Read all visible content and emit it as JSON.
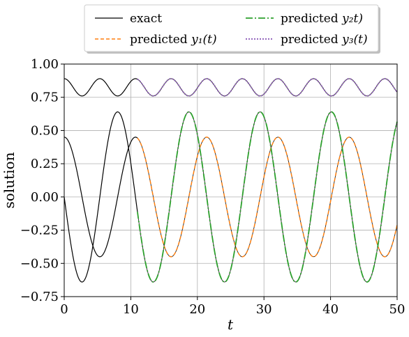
{
  "chart_data": {
    "type": "line",
    "xlabel": "t",
    "ylabel": "solution",
    "xlim": [
      0,
      50
    ],
    "ylim": [
      -0.75,
      1.0
    ],
    "grid": true,
    "legend_placement": "top-center, above plot",
    "x_ticks": [
      0,
      10,
      20,
      30,
      40,
      50
    ],
    "x_tick_labels": [
      "0",
      "10",
      "20",
      "30",
      "40",
      "50"
    ],
    "y_ticks": [
      -0.75,
      -0.5,
      -0.25,
      0.0,
      0.25,
      0.5,
      0.75,
      1.0
    ],
    "y_tick_labels": [
      "−0.75",
      "−0.50",
      "−0.25",
      "0.00",
      "0.25",
      "0.50",
      "0.75",
      "1.00"
    ],
    "legend": [
      {
        "key": "exact",
        "pre": "exact",
        "math": "",
        "color": "#000000",
        "dash": "",
        "width": 1.2
      },
      {
        "key": "y2",
        "pre": "predicted ",
        "math": "y₂t)",
        "color": "#2ca02c",
        "dash": "10,3,2,3",
        "width": 1.8
      },
      {
        "key": "y1",
        "pre": "predicted ",
        "math": "y₁(t)",
        "color": "#ff7f0e",
        "dash": "5,3",
        "width": 1.5
      },
      {
        "key": "y3",
        "pre": "predicted ",
        "math": "y₃(t)",
        "color": "#9467bd",
        "dash": "2,2",
        "width": 2.0
      }
    ],
    "series": [
      {
        "name": "exact",
        "color": "#000000",
        "x_range": [
          0,
          11
        ],
        "components": [
          {
            "label": "y1",
            "peaks": [
              {
                "t": 0,
                "y": 0.45
              },
              {
                "t": 10.7,
                "y": 0.45
              }
            ],
            "troughs": [
              {
                "t": 5.4,
                "y": -0.45
              }
            ],
            "period": 10.7
          },
          {
            "label": "y2",
            "start": {
              "t": 0,
              "y": 0.0
            },
            "troughs": [
              {
                "t": 2.7,
                "y": -0.64
              }
            ],
            "peaks": [
              {
                "t": 8.05,
                "y": 0.64
              }
            ],
            "period": 10.7
          },
          {
            "label": "y3",
            "start": {
              "t": 0,
              "y": 0.89
            },
            "min": 0.76,
            "max": 0.89,
            "period": 5.35
          }
        ]
      },
      {
        "name": "predicted y1(t)",
        "color": "#ff7f0e",
        "x_range": [
          11,
          50
        ],
        "peaks": [
          {
            "t": 21.4,
            "y": 0.45
          },
          {
            "t": 32.1,
            "y": 0.45
          },
          {
            "t": 42.8,
            "y": 0.45
          }
        ],
        "troughs": [
          {
            "t": 16.05,
            "y": -0.45
          },
          {
            "t": 26.75,
            "y": -0.45
          },
          {
            "t": 37.45,
            "y": -0.45
          },
          {
            "t": 48.15,
            "y": -0.45
          }
        ],
        "end": {
          "t": 50,
          "y": -0.23
        }
      },
      {
        "name": "predicted y2(t)",
        "color": "#2ca02c",
        "x_range": [
          11,
          50
        ],
        "peaks": [
          {
            "t": 18.75,
            "y": 0.64
          },
          {
            "t": 29.45,
            "y": 0.64
          },
          {
            "t": 40.15,
            "y": 0.64
          }
        ],
        "troughs": [
          {
            "t": 13.4,
            "y": -0.64
          },
          {
            "t": 24.1,
            "y": -0.64
          },
          {
            "t": 34.8,
            "y": -0.64
          },
          {
            "t": 45.5,
            "y": -0.64
          }
        ],
        "end": {
          "t": 50,
          "y": 0.55
        }
      },
      {
        "name": "predicted y3(t)",
        "color": "#9467bd",
        "x_range": [
          11,
          50
        ],
        "min": 0.76,
        "max": 0.89,
        "period": 5.35,
        "end": {
          "t": 50,
          "y": 0.8
        }
      }
    ]
  }
}
